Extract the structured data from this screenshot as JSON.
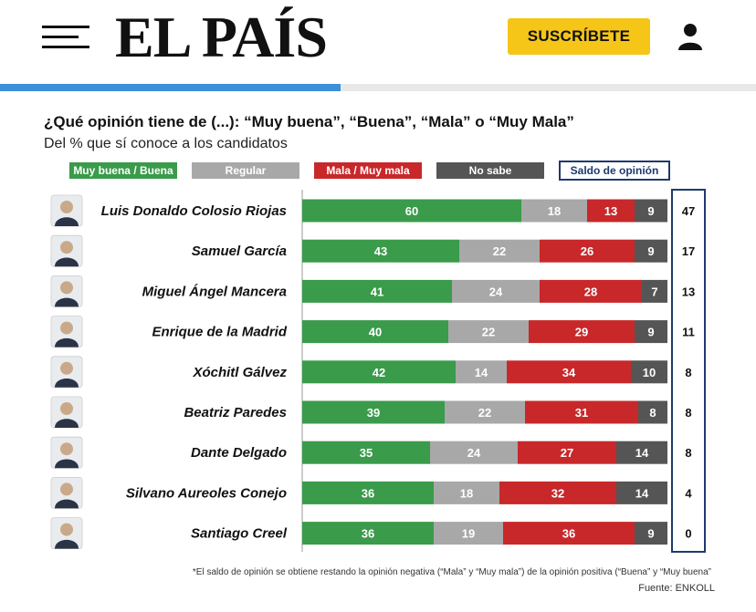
{
  "header": {
    "logo": "EL PAÍS",
    "subscribe_label": "SUSCRÍBETE",
    "progress": 0.45,
    "accent_color": "#f5c518",
    "progress_color": "#3d8fd8"
  },
  "chart_data": {
    "type": "bar",
    "orientation": "horizontal",
    "stacked": true,
    "title": "¿Qué opinión tiene de (...): “Muy buena”, “Buena”, “Mala” o “Muy Mala”",
    "subtitle": "Del % que sí conoce a los candidatos",
    "categories": [
      "Luis Donaldo Colosio Riojas",
      "Samuel García",
      "Miguel Ángel Mancera",
      "Enrique de la Madrid",
      "Xóchitl Gálvez",
      "Beatriz Paredes",
      "Dante Delgado",
      "Silvano Aureoles Conejo",
      "Santiago Creel"
    ],
    "series": [
      {
        "name": "Muy buena / Buena",
        "color": "#3a9b4a",
        "values": [
          60,
          43,
          41,
          40,
          42,
          39,
          35,
          36,
          36
        ]
      },
      {
        "name": "Regular",
        "color": "#a8a8a8",
        "values": [
          18,
          22,
          24,
          22,
          14,
          22,
          24,
          18,
          19
        ]
      },
      {
        "name": "Mala / Muy mala",
        "color": "#c8282a",
        "values": [
          13,
          26,
          28,
          29,
          34,
          31,
          27,
          32,
          36
        ]
      },
      {
        "name": "No sabe",
        "color": "#555555",
        "values": [
          9,
          9,
          7,
          9,
          10,
          8,
          14,
          14,
          9
        ]
      }
    ],
    "saldo": {
      "name": "Saldo de opinión",
      "values": [
        47,
        17,
        13,
        11,
        8,
        8,
        8,
        4,
        0
      ]
    },
    "legend_position": "top",
    "footnote": "*El saldo de opinión se obtiene restando la opinión negativa (“Mala” y “Muy mala”) de la opinión positiva (“Buena” y “Muy buena”",
    "source": "Fuente: ENKOLL"
  }
}
